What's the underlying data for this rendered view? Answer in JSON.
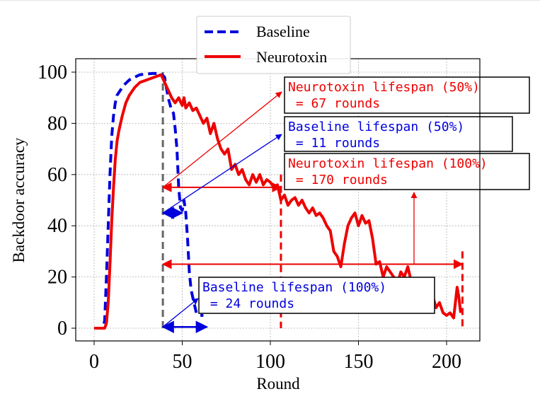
{
  "chart_data": {
    "type": "line",
    "xlabel": "Round",
    "ylabel": "Backdoor accuracy",
    "xlim": [
      -10,
      220
    ],
    "ylim": [
      -5,
      105
    ],
    "xticks": [
      0,
      50,
      100,
      150,
      200
    ],
    "yticks": [
      0,
      20,
      40,
      60,
      80,
      100
    ],
    "grid": true,
    "legend_position": "top-center",
    "series": [
      {
        "name": "Baseline",
        "color": "#0000dd",
        "style": "dashed",
        "points": [
          [
            0,
            0
          ],
          [
            5,
            0
          ],
          [
            6,
            3
          ],
          [
            7,
            20
          ],
          [
            8,
            40
          ],
          [
            9,
            60
          ],
          [
            10,
            75
          ],
          [
            11,
            83
          ],
          [
            12,
            88
          ],
          [
            13,
            91
          ],
          [
            15,
            93
          ],
          [
            17,
            95
          ],
          [
            20,
            97
          ],
          [
            23,
            98
          ],
          [
            26,
            99
          ],
          [
            30,
            99.3
          ],
          [
            34,
            99.5
          ],
          [
            38,
            99.4
          ],
          [
            40,
            98
          ],
          [
            42,
            90
          ],
          [
            44,
            85
          ],
          [
            45,
            84
          ],
          [
            46,
            78
          ],
          [
            47,
            70
          ],
          [
            48,
            55
          ],
          [
            49,
            47
          ],
          [
            50,
            46
          ],
          [
            51,
            50
          ],
          [
            52,
            45
          ],
          [
            53,
            35
          ],
          [
            54,
            22
          ],
          [
            55,
            15
          ],
          [
            56,
            12
          ],
          [
            57,
            9
          ],
          [
            58,
            6
          ],
          [
            60,
            5
          ],
          [
            62,
            5
          ]
        ]
      },
      {
        "name": "Neurotoxin",
        "color": "#ee0000",
        "style": "solid",
        "points": [
          [
            0,
            0
          ],
          [
            6,
            0
          ],
          [
            7,
            2
          ],
          [
            8,
            10
          ],
          [
            9,
            25
          ],
          [
            10,
            42
          ],
          [
            11,
            55
          ],
          [
            12,
            66
          ],
          [
            13,
            73
          ],
          [
            14,
            77
          ],
          [
            15,
            80
          ],
          [
            16,
            83
          ],
          [
            18,
            88
          ],
          [
            20,
            91
          ],
          [
            23,
            94
          ],
          [
            26,
            96
          ],
          [
            30,
            97
          ],
          [
            34,
            98
          ],
          [
            38,
            99
          ],
          [
            40,
            96
          ],
          [
            42,
            93
          ],
          [
            44,
            90
          ],
          [
            46,
            88
          ],
          [
            48,
            90
          ],
          [
            50,
            87
          ],
          [
            51,
            90
          ],
          [
            52,
            86
          ],
          [
            54,
            88
          ],
          [
            56,
            85
          ],
          [
            58,
            86
          ],
          [
            60,
            83
          ],
          [
            62,
            80
          ],
          [
            64,
            82
          ],
          [
            66,
            76
          ],
          [
            68,
            80
          ],
          [
            70,
            74
          ],
          [
            72,
            70
          ],
          [
            74,
            68
          ],
          [
            76,
            70
          ],
          [
            78,
            62
          ],
          [
            80,
            64
          ],
          [
            82,
            60
          ],
          [
            84,
            62
          ],
          [
            86,
            58
          ],
          [
            88,
            56
          ],
          [
            90,
            60
          ],
          [
            92,
            57
          ],
          [
            94,
            60
          ],
          [
            96,
            56
          ],
          [
            98,
            58
          ],
          [
            100,
            57
          ],
          [
            102,
            55
          ],
          [
            104,
            56
          ],
          [
            106,
            50
          ],
          [
            108,
            52
          ],
          [
            110,
            48
          ],
          [
            112,
            50
          ],
          [
            114,
            51
          ],
          [
            116,
            48
          ],
          [
            118,
            50
          ],
          [
            120,
            47
          ],
          [
            122,
            45
          ],
          [
            124,
            47
          ],
          [
            126,
            44
          ],
          [
            128,
            45
          ],
          [
            130,
            43
          ],
          [
            132,
            40
          ],
          [
            134,
            38
          ],
          [
            136,
            30
          ],
          [
            138,
            28
          ],
          [
            140,
            24
          ],
          [
            142,
            33
          ],
          [
            144,
            40
          ],
          [
            146,
            43
          ],
          [
            148,
            45
          ],
          [
            150,
            40
          ],
          [
            152,
            44
          ],
          [
            154,
            41
          ],
          [
            156,
            42
          ],
          [
            158,
            35
          ],
          [
            160,
            25
          ],
          [
            162,
            26
          ],
          [
            164,
            20
          ],
          [
            166,
            24
          ],
          [
            168,
            22
          ],
          [
            170,
            20
          ],
          [
            172,
            17
          ],
          [
            174,
            22
          ],
          [
            176,
            20
          ],
          [
            178,
            24
          ],
          [
            180,
            18
          ],
          [
            182,
            15
          ],
          [
            184,
            13
          ],
          [
            186,
            10
          ],
          [
            188,
            14
          ],
          [
            190,
            12
          ],
          [
            192,
            13
          ],
          [
            194,
            8
          ],
          [
            196,
            10
          ],
          [
            198,
            6
          ],
          [
            200,
            5
          ],
          [
            202,
            6
          ],
          [
            204,
            4
          ],
          [
            206,
            16
          ],
          [
            207,
            12
          ],
          [
            208,
            6
          ]
        ]
      }
    ],
    "annotations": [
      {
        "key": "neuro50",
        "line1": "Neurotoxin lifespan (50%)",
        "line2": " = 67 rounds",
        "color": "#ee0000"
      },
      {
        "key": "base50",
        "line1": "Baseline lifespan (50%)",
        "line2": " = 11 rounds",
        "color": "#0000dd"
      },
      {
        "key": "neuro100",
        "line1": "Neurotoxin lifespan (100%)",
        "line2": " = 170 rounds",
        "color": "#ee0000"
      },
      {
        "key": "base100",
        "line1": "Baseline lifespan (100%)",
        "line2": " = 24 rounds",
        "color": "#0000dd"
      }
    ]
  },
  "legend": {
    "baseline_label": "Baseline",
    "neurotoxin_label": "Neurotoxin"
  }
}
